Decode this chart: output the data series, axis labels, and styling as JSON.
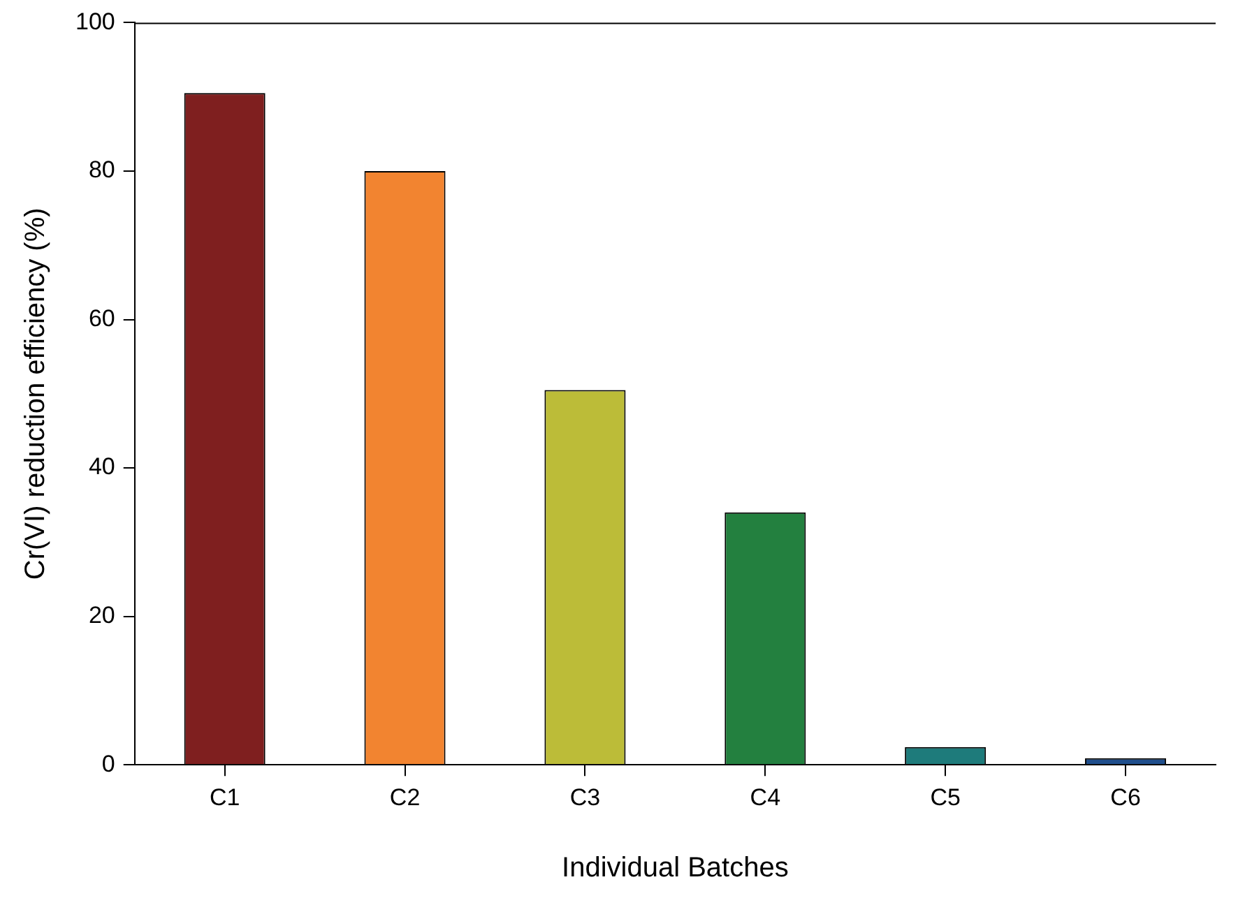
{
  "chart_data": {
    "type": "bar",
    "xlabel": "Individual Batches",
    "ylabel": "Cr(VI) reduction efficiency (%)",
    "categories": [
      "C1",
      "C2",
      "C3",
      "C4",
      "C5",
      "C6"
    ],
    "values": [
      90.5,
      80,
      50.5,
      34,
      2.4,
      0.9
    ],
    "colors": [
      "#7f1f1f",
      "#f28430",
      "#bcbc38",
      "#23803f",
      "#1e7b7b",
      "#1f4e8c"
    ],
    "ylim": [
      0,
      100
    ],
    "yticks": [
      0,
      20,
      40,
      60,
      80,
      100
    ],
    "grid": false,
    "legend": false
  }
}
